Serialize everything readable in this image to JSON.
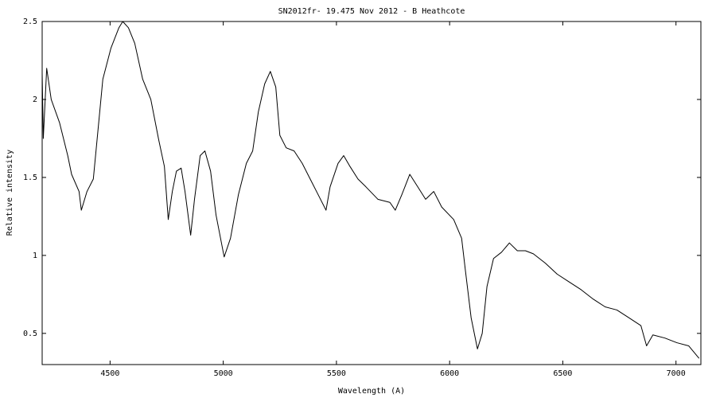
{
  "chart_data": {
    "type": "line",
    "title": "SN2012fr- 19.475 Nov 2012 - B Heathcote",
    "x_label": "Wavelength (A)",
    "y_label": "Relative intensity",
    "x": [
      4200,
      4205,
      4220,
      4240,
      4277,
      4313,
      4330,
      4363,
      4373,
      4398,
      4426,
      4451,
      4468,
      4504,
      4539,
      4556,
      4581,
      4609,
      4644,
      4680,
      4715,
      4740,
      4757,
      4775,
      4793,
      4814,
      4831,
      4856,
      4873,
      4898,
      4919,
      4944,
      4968,
      5004,
      5032,
      5067,
      5102,
      5130,
      5155,
      5183,
      5208,
      5232,
      5250,
      5278,
      5313,
      5349,
      5384,
      5419,
      5454,
      5472,
      5507,
      5532,
      5560,
      5595,
      5630,
      5683,
      5736,
      5760,
      5789,
      5824,
      5859,
      5894,
      5930,
      5965,
      6018,
      6053,
      6070,
      6095,
      6123,
      6144,
      6165,
      6194,
      6229,
      6264,
      6299,
      6335,
      6370,
      6423,
      6475,
      6528,
      6581,
      6634,
      6687,
      6739,
      6792,
      6845,
      6870,
      6898,
      6951,
      7004,
      7056,
      7102
    ],
    "series": [
      {
        "name": "SN2012fr",
        "color": "#000000",
        "values": [
          2.17,
          1.75,
          2.2,
          2.0,
          1.85,
          1.64,
          1.52,
          1.41,
          1.29,
          1.41,
          1.49,
          1.87,
          2.13,
          2.33,
          2.46,
          2.5,
          2.46,
          2.36,
          2.13,
          2.0,
          1.74,
          1.57,
          1.23,
          1.41,
          1.54,
          1.56,
          1.41,
          1.13,
          1.36,
          1.64,
          1.67,
          1.54,
          1.26,
          0.99,
          1.11,
          1.39,
          1.59,
          1.67,
          1.92,
          2.1,
          2.18,
          2.08,
          1.77,
          1.69,
          1.67,
          1.59,
          1.49,
          1.39,
          1.29,
          1.44,
          1.59,
          1.64,
          1.57,
          1.49,
          1.44,
          1.36,
          1.34,
          1.29,
          1.39,
          1.52,
          1.44,
          1.36,
          1.41,
          1.31,
          1.23,
          1.11,
          0.9,
          0.6,
          0.4,
          0.5,
          0.8,
          0.98,
          1.02,
          1.08,
          1.03,
          1.03,
          1.01,
          0.95,
          0.88,
          0.83,
          0.78,
          0.72,
          0.67,
          0.65,
          0.6,
          0.55,
          0.42,
          0.49,
          0.47,
          0.44,
          0.42,
          0.34
        ]
      }
    ],
    "xlim": [
      4200,
      7110
    ],
    "ylim": [
      0.3,
      2.5
    ],
    "xticks": [
      4500,
      5000,
      5500,
      6000,
      6500,
      7000
    ],
    "yticks": [
      0.5,
      1,
      1.5,
      2,
      2.5
    ]
  }
}
